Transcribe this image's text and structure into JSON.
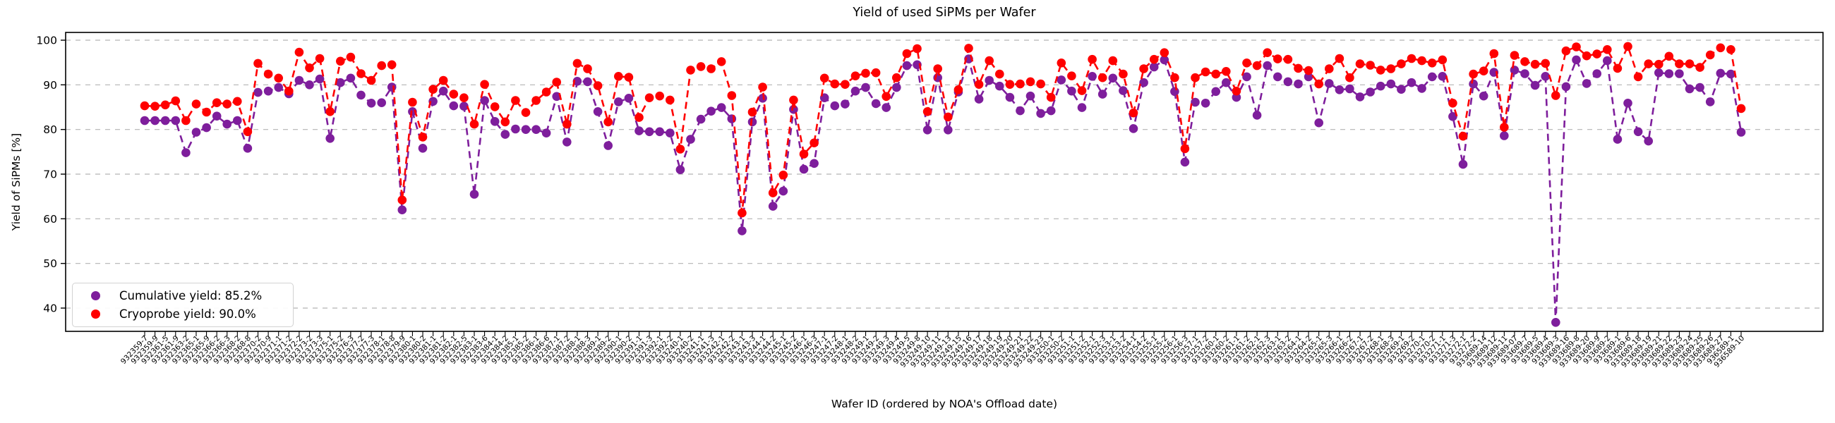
{
  "title": "Yield of used SiPMs per Wafer",
  "axes": {
    "x_label": "Wafer ID (ordered by NOA's Offload date)",
    "y_label": "Yield of SiPMs [%]",
    "y_ticks": [
      40,
      50,
      60,
      70,
      80,
      90,
      100
    ]
  },
  "legend": [
    {
      "label": "Cumulative yield: 85.2%",
      "color": "#7e1e9c"
    },
    {
      "label": "Cryoprobe yield: 90.0%",
      "color": "#ff0000"
    }
  ],
  "colors": {
    "cumulative": "#7e1e9c",
    "cryoprobe": "#ff0000",
    "grid": "#b3b3b3",
    "spine": "#000000"
  },
  "chart_data": {
    "type": "line",
    "title": "Yield of used SiPMs per Wafer",
    "xlabel": "Wafer ID (ordered by NOA's Offload date)",
    "ylabel": "Yield of SiPMs [%]",
    "ylim": [
      34,
      102
    ],
    "grid": "horizontal-dashed",
    "linestyle": "dashed",
    "marker": "circle",
    "legend_position": "lower-left",
    "x_tick_labels": [
      "932359-7",
      "932359-9",
      "932361-5",
      "932361-9",
      "932363-2",
      "932365-1",
      "932365-9",
      "932366-2",
      "932366-3",
      "932368-2",
      "932368-8",
      "932370-2",
      "932370-9",
      "932371-1",
      "932371-2",
      "932372-2",
      "932373-2",
      "932373-3",
      "932375-1",
      "932375-2",
      "932376-3",
      "932377-2",
      "932377-3",
      "932378-1",
      "932378-8",
      "932379-9",
      "932380-1",
      "932380-2",
      "932381-1",
      "932381-2",
      "932382-1",
      "932382-5",
      "932383-1",
      "932383-6",
      "932384-1",
      "932384-2",
      "932385-1",
      "932385-2",
      "932386-1",
      "932386-6",
      "932387-1",
      "932387-2",
      "932388-1",
      "932388-3",
      "932389-1",
      "932389-2",
      "932390-1",
      "932390-2",
      "932391-1",
      "932391-3",
      "932392-1",
      "932392-2",
      "933240-1",
      "933240-2",
      "933241-1",
      "933241-3",
      "933242-1",
      "933242-2",
      "933243-1",
      "933243-3",
      "933244-1",
      "933244-2",
      "933245-1",
      "933245-2",
      "933246-1",
      "933246-3",
      "933247-1",
      "933247-2",
      "933248-1",
      "933248-2",
      "933249-1",
      "933249-2",
      "933249-3",
      "933249-4",
      "933249-5",
      "933249-8",
      "933249-10",
      "933249-11",
      "933249-13",
      "933249-15",
      "933249-16",
      "933249-17",
      "933249-18",
      "933249-19",
      "933249-20",
      "933249-21",
      "933249-22",
      "933249-23",
      "933250-1",
      "933250-2",
      "933251-1",
      "933251-2",
      "933252-1",
      "933252-3",
      "933253-1",
      "933253-2",
      "933254-1",
      "933254-2",
      "933255-1",
      "933255-2",
      "933256-1",
      "933256-3",
      "933257-1",
      "933257-2",
      "933260-1",
      "933260-2",
      "933261-1",
      "933261-2",
      "933262-1",
      "933262-3",
      "933263-1",
      "933263-2",
      "933264-1",
      "933264-2",
      "933265-1",
      "933265-3",
      "933266-1",
      "933266-2",
      "933267-1",
      "933267-2",
      "933268-1",
      "933268-3",
      "933269-1",
      "933269-2",
      "933270-1",
      "933270-2",
      "933271-1",
      "933271-3",
      "933272-1",
      "933272-2",
      "933689-14",
      "933689-12",
      "933689-11",
      "933689-07",
      "933689-7",
      "933689-5",
      "933689-4",
      "933689-3",
      "933689-16",
      "933689-8",
      "933689-20",
      "933689-9",
      "933689-2",
      "933689-1",
      "933689-6",
      "933689-18",
      "933689-19",
      "933689-21",
      "933689-22",
      "933689-23",
      "933689-24",
      "933689-25",
      "933689-26",
      "933689-27",
      "936589-1",
      "936589-10"
    ],
    "series": [
      {
        "name": "Cumulative yield: 85.2%",
        "color": "#7e1e9c",
        "values": [
          82,
          82,
          82,
          82,
          74.8,
          79.4,
          80.4,
          83,
          81.2,
          82,
          75.8,
          88.3,
          88.6,
          89.4,
          88,
          91,
          90,
          91.3,
          78,
          90.5,
          91.5,
          87.7,
          85.9,
          86,
          89.5,
          62,
          84,
          75.8,
          86.3,
          88.6,
          85.3,
          85.2,
          65.5,
          86.5,
          81.8,
          78.9,
          80.1,
          80,
          80,
          79.2,
          87.4,
          77.2,
          90.8,
          90.7,
          84,
          76.4,
          86.2,
          87,
          79.7,
          79.5,
          79.5,
          79.2,
          71,
          77.8,
          82.3,
          84.1,
          84.9,
          82.4,
          57.3,
          81.7,
          87,
          62.8,
          66.2,
          84.5,
          71.1,
          72.4,
          87.1,
          85.3,
          85.7,
          88.6,
          89.4,
          85.8,
          84.9,
          89.4,
          94.3,
          94.5,
          79.9,
          91.6,
          79.9,
          88.4,
          95.8,
          86.8,
          91,
          89.7,
          87.2,
          84.2,
          87.5,
          83.6,
          84.2,
          91.1,
          88.6,
          84.9,
          91.9,
          87.9,
          91.5,
          88.7,
          80.2,
          90.5,
          94,
          95.6,
          88.5,
          72.7,
          86.1,
          85.9,
          88.5,
          90.5,
          87.2,
          91.8,
          83.2,
          94.3,
          91.8,
          90.7,
          90.2,
          91.8,
          81.5,
          90.3,
          88.9,
          89.1,
          87.3,
          88.4,
          89.7,
          90.2,
          89,
          90.5,
          89.2,
          91.8,
          91.9,
          82.9,
          72.2,
          90.2,
          87.5,
          92.8,
          78.6,
          93.3,
          92.5,
          89.9,
          91.9,
          36.8,
          89.6,
          95.6,
          90.3,
          92.5,
          95.4,
          77.8,
          85.9,
          79.5,
          77.4,
          92.7,
          92.5,
          92.5,
          89.1,
          89.4,
          86.2,
          92.6,
          92.4,
          79.4
        ]
      },
      {
        "name": "Cryoprobe yield: 90.0%",
        "color": "#ff0000",
        "values": [
          85.3,
          85.2,
          85.5,
          86.4,
          82,
          85.7,
          83.9,
          86,
          85.7,
          86.3,
          79.5,
          94.8,
          92.4,
          91.5,
          88.6,
          97.3,
          93.8,
          95.9,
          84,
          95.3,
          96.2,
          92.5,
          91,
          94.3,
          94.5,
          64.2,
          86.1,
          78.3,
          89,
          91,
          87.9,
          87.1,
          81.2,
          90.1,
          85.1,
          81.7,
          86.5,
          83.8,
          86.5,
          88.4,
          90.6,
          81.2,
          94.8,
          93.6,
          89.8,
          81.7,
          91.9,
          91.7,
          82.7,
          87.1,
          87.5,
          86.6,
          75.6,
          93.3,
          94.1,
          93.6,
          95.2,
          87.6,
          61.3,
          83.9,
          89.5,
          65.8,
          69.8,
          86.6,
          74.5,
          77,
          91.5,
          90.2,
          90.1,
          92,
          92.6,
          92.7,
          87.4,
          91.6,
          97,
          98.1,
          84,
          93.6,
          82.8,
          88.9,
          98.2,
          90.1,
          95.4,
          92.4,
          90.1,
          90.2,
          90.7,
          90.2,
          87.2,
          94.9,
          92,
          88.7,
          95.7,
          91.6,
          95.4,
          92.4,
          83.7,
          93.6,
          95.7,
          97.2,
          91.6,
          75.7,
          91.6,
          92.9,
          92.4,
          93,
          88.6,
          94.9,
          94.3,
          97.2,
          95.8,
          95.7,
          93.7,
          93.2,
          90.2,
          93.6,
          95.9,
          91.6,
          94.7,
          94.4,
          93.3,
          93.6,
          94.7,
          95.9,
          95.4,
          94.9,
          95.6,
          85.9,
          78.5,
          92.4,
          93.1,
          97,
          80.5,
          96.6,
          95.2,
          94.6,
          94.8,
          87.6,
          97.6,
          98.5,
          96.5,
          96.9,
          97.9,
          93.7,
          98.6,
          91.8,
          94.7,
          94.6,
          96.4,
          94.7,
          94.7,
          93.9,
          96.7,
          98.3,
          97.9,
          84.7
        ]
      }
    ]
  }
}
